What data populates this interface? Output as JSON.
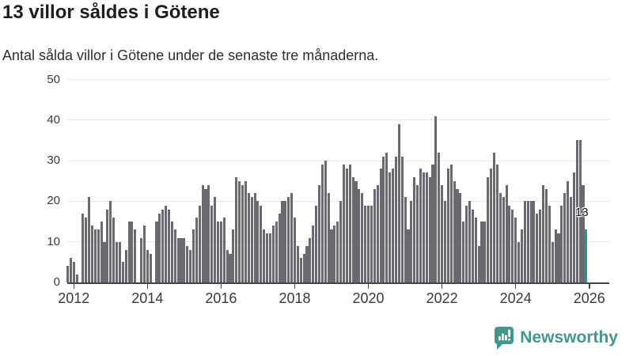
{
  "header": {
    "title": "13 villor såldes i Götene",
    "subtitle": "Antal sålda villor i Götene under de senaste tre månaderna."
  },
  "chart_data": {
    "type": "bar",
    "title": "13 villor såldes i Götene",
    "subtitle": "Antal sålda villor i Götene under de senaste tre månaderna.",
    "unit": "sålda villor (rullande tre månader)",
    "start_month": "2011-11",
    "end_month": "2025-12",
    "values": [
      4,
      6,
      5,
      2,
      0,
      17,
      16,
      21,
      14,
      13,
      13,
      15,
      10,
      18,
      20,
      16,
      10,
      10,
      5,
      8,
      15,
      15,
      13,
      0,
      11,
      14,
      8,
      7,
      0,
      15,
      17,
      18,
      19,
      18,
      15,
      13,
      11,
      11,
      11,
      9,
      8,
      13,
      16,
      19,
      24,
      23,
      24,
      19,
      21,
      15,
      15,
      16,
      8,
      7,
      13,
      26,
      25,
      24,
      25,
      22,
      21,
      22,
      20,
      19,
      13,
      12,
      12,
      14,
      15,
      17,
      20,
      20,
      21,
      22,
      16,
      9,
      6,
      7,
      9,
      11,
      14,
      19,
      24,
      29,
      30,
      22,
      13,
      14,
      15,
      20,
      29,
      28,
      29,
      26,
      25,
      23,
      22,
      19,
      19,
      19,
      23,
      24,
      28,
      31,
      32,
      27,
      28,
      31,
      39,
      31,
      21,
      13,
      20,
      26,
      24,
      28,
      27,
      27,
      26,
      29,
      41,
      32,
      24,
      20,
      28,
      29,
      25,
      23,
      22,
      15,
      19,
      20,
      18,
      16,
      9,
      15,
      15,
      26,
      28,
      32,
      29,
      22,
      21,
      24,
      19,
      18,
      16,
      10,
      13,
      20,
      20,
      20,
      20,
      17,
      18,
      24,
      23,
      19,
      10,
      13,
      12,
      19,
      22,
      25,
      21,
      27,
      35,
      35,
      24,
      13
    ],
    "ylim": [
      0,
      50
    ],
    "yticks": [
      0,
      10,
      20,
      30,
      40,
      50
    ],
    "xticks": [
      2012,
      2014,
      2016,
      2018,
      2020,
      2022,
      2024,
      2026
    ],
    "grid": true,
    "legend": "none",
    "bar_color": "#696970",
    "highlight": {
      "index": 169,
      "value": 13,
      "label": "13",
      "color": "#109e9e"
    }
  },
  "footer": {
    "brand": "Newsworthy",
    "logo_icon": "newsworthy-speech-bubble-bar-chart-icon",
    "brand_color": "#3f998a"
  },
  "colors": {
    "background": "#ffffff",
    "grid": "#e8e8e8",
    "axis": "#454545",
    "tick_text": "#3a3a3a",
    "bar": "#696970",
    "highlight": "#109e9e"
  }
}
